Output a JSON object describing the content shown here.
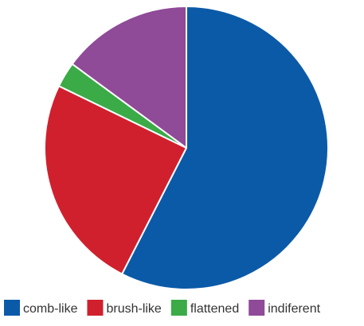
{
  "chart_data": {
    "type": "pie",
    "title": "",
    "slices": [
      {
        "label": "comb-like",
        "value": 57.5,
        "color": "#0b5aa8"
      },
      {
        "label": "brush-like",
        "value": 24.7,
        "color": "#d0202e"
      },
      {
        "label": "flattened",
        "value": 2.9,
        "color": "#3aab46"
      },
      {
        "label": "indiferent",
        "value": 14.9,
        "color": "#8f4a98"
      }
    ],
    "legend": {
      "placement": "bottom",
      "items": [
        "comb-like",
        "brush-like",
        "flattened",
        "indiferent"
      ]
    },
    "start_angle": "12 o'clock",
    "direction": "clockwise",
    "slice_border_color": "#ffffff"
  }
}
